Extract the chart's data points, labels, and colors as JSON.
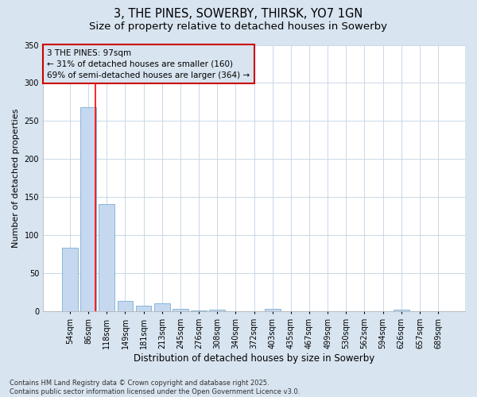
{
  "title1": "3, THE PINES, SOWERBY, THIRSK, YO7 1GN",
  "title2": "Size of property relative to detached houses in Sowerby",
  "xlabel": "Distribution of detached houses by size in Sowerby",
  "ylabel": "Number of detached properties",
  "categories": [
    "54sqm",
    "86sqm",
    "118sqm",
    "149sqm",
    "181sqm",
    "213sqm",
    "245sqm",
    "276sqm",
    "308sqm",
    "340sqm",
    "372sqm",
    "403sqm",
    "435sqm",
    "467sqm",
    "499sqm",
    "530sqm",
    "562sqm",
    "594sqm",
    "626sqm",
    "657sqm",
    "689sqm"
  ],
  "values": [
    83,
    268,
    141,
    13,
    7,
    10,
    3,
    1,
    2,
    0,
    0,
    3,
    0,
    0,
    0,
    0,
    0,
    0,
    2,
    0,
    0
  ],
  "bar_color": "#c5d8f0",
  "bar_edge_color": "#7aafd4",
  "red_line_x": 1.37,
  "annotation_line1": "3 THE PINES: 97sqm",
  "annotation_line2": "← 31% of detached houses are smaller (160)",
  "annotation_line3": "69% of semi-detached houses are larger (364) →",
  "annotation_box_color": "#cc0000",
  "figure_bg_color": "#d8e4f0",
  "plot_bg_color": "#ffffff",
  "ylim": [
    0,
    350
  ],
  "yticks": [
    0,
    50,
    100,
    150,
    200,
    250,
    300,
    350
  ],
  "footnote": "Contains HM Land Registry data © Crown copyright and database right 2025.\nContains public sector information licensed under the Open Government Licence v3.0.",
  "title1_fontsize": 10.5,
  "title2_fontsize": 9.5,
  "xlabel_fontsize": 8.5,
  "ylabel_fontsize": 8,
  "tick_fontsize": 7,
  "annot_fontsize": 7.5,
  "footnote_fontsize": 6
}
